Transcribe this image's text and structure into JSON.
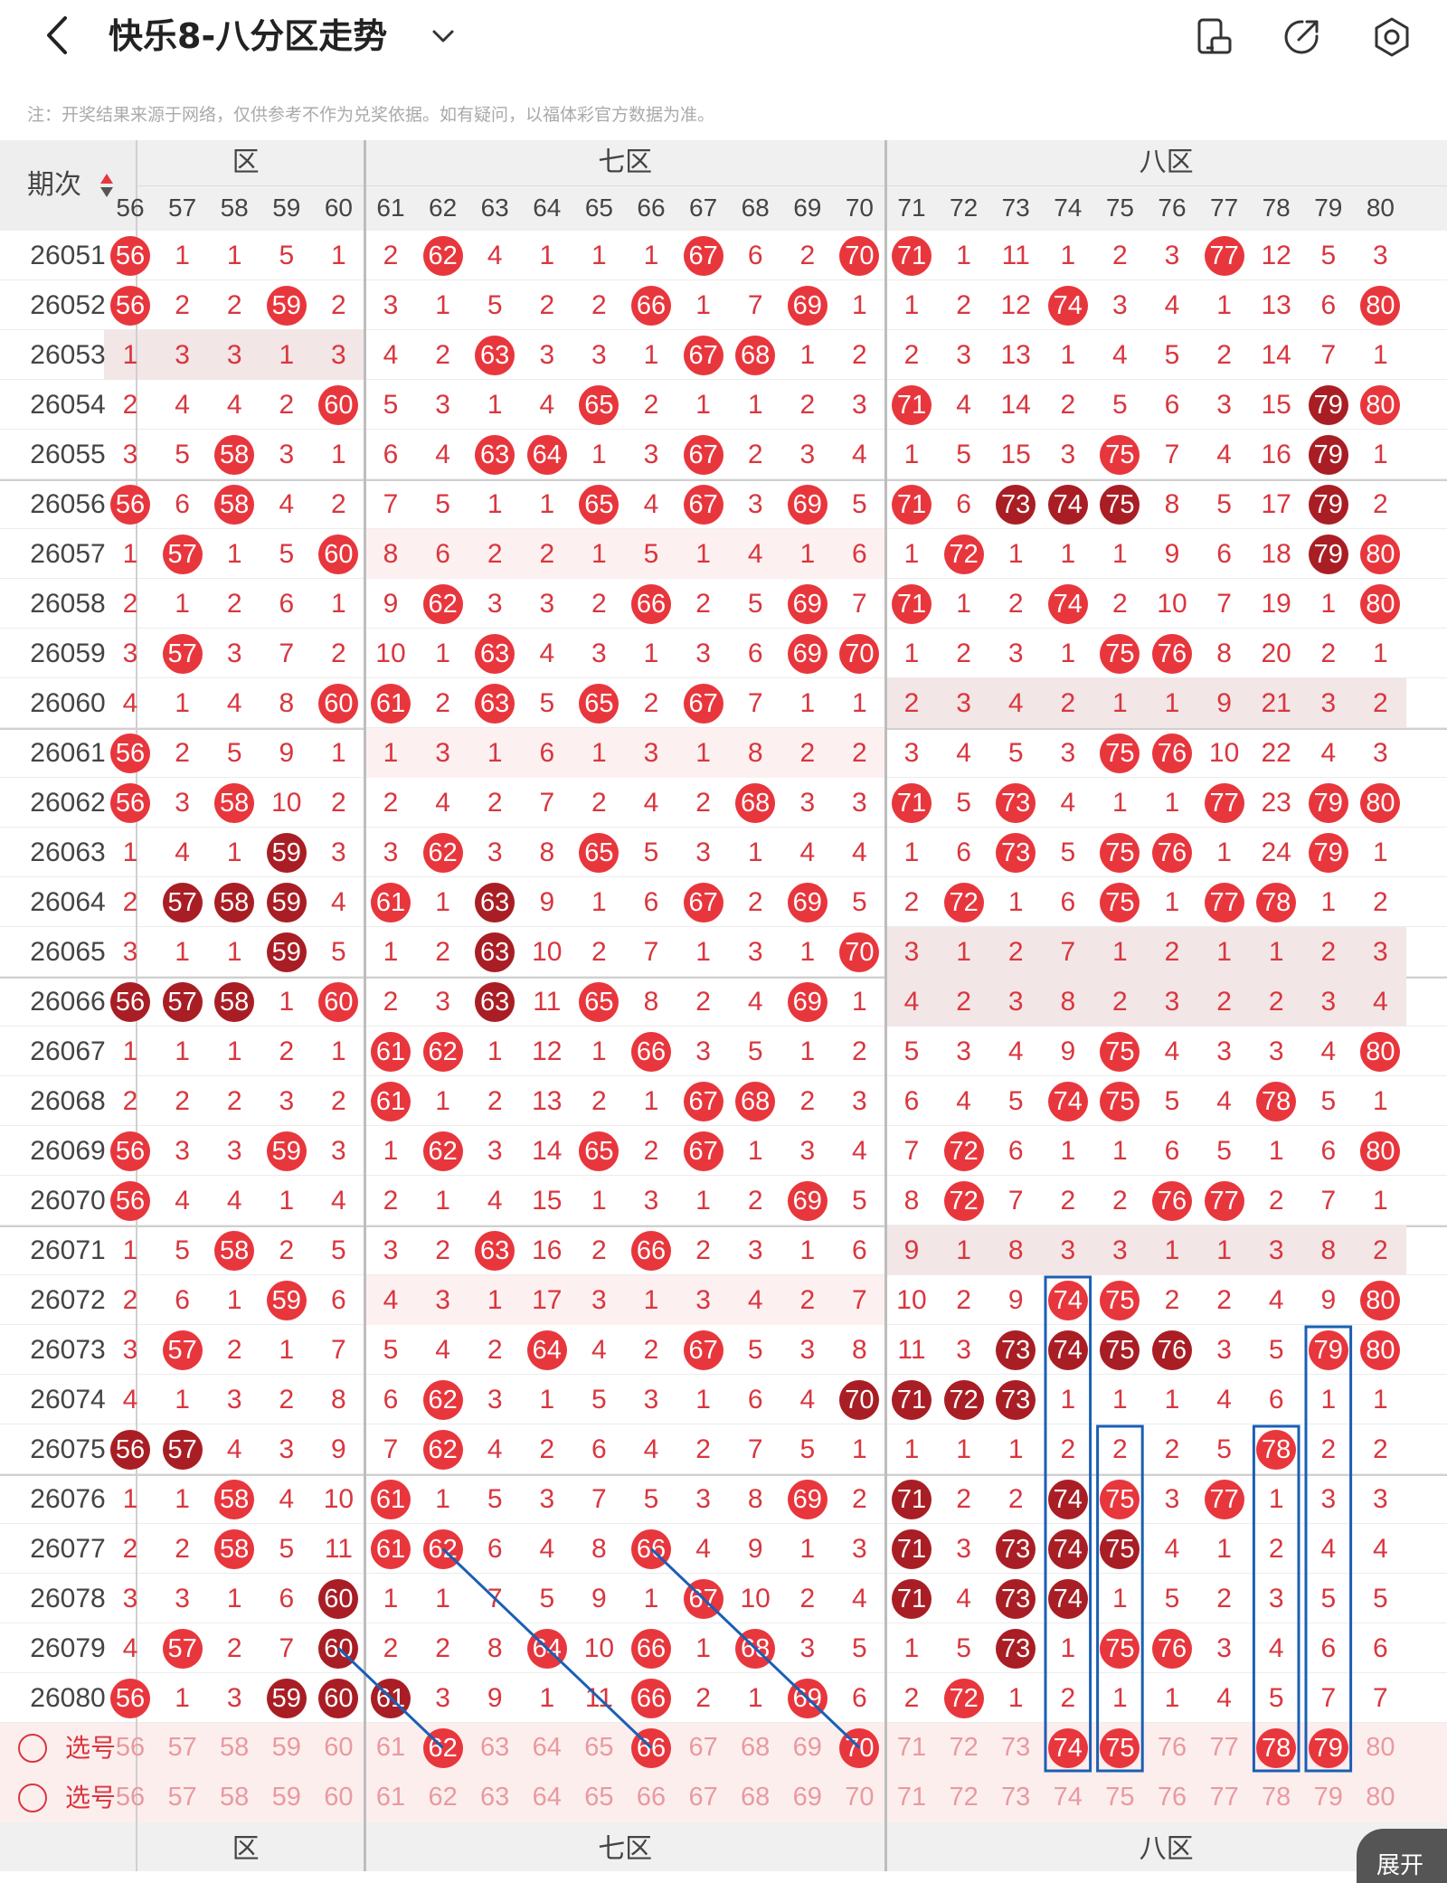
{
  "header": {
    "title": "快乐8-八分区走势"
  },
  "notice": "注：开奖结果来源于网络，仅供参考不作为兑奖依据。如有疑问，以福体彩官方数据为准。",
  "columns_label": "期次",
  "zones": {
    "left_partial": "区",
    "z7": "七区",
    "z8": "八区"
  },
  "column_numbers": [
    56,
    57,
    58,
    59,
    60,
    61,
    62,
    63,
    64,
    65,
    66,
    67,
    68,
    69,
    70,
    71,
    72,
    73,
    74,
    75,
    76,
    77,
    78,
    79,
    80
  ],
  "selector_label": "选号",
  "expand_label": "展开",
  "colors": {
    "hit": "#e8363d",
    "repeat_hit": "#a81e24",
    "miss_text": "#d9363e",
    "overlay_line": "#1a5fb4"
  },
  "rows": [
    {
      "issue": "26051",
      "cells": [
        "H",
        1,
        1,
        5,
        1,
        2,
        "H",
        4,
        1,
        1,
        1,
        "H",
        6,
        2,
        "H",
        "H",
        1,
        11,
        1,
        2,
        3,
        "H",
        12,
        5,
        3
      ]
    },
    {
      "issue": "26052",
      "cells": [
        "H",
        2,
        2,
        "H",
        2,
        3,
        1,
        5,
        2,
        2,
        "H",
        1,
        7,
        "H",
        1,
        1,
        2,
        12,
        "H",
        3,
        4,
        1,
        13,
        6,
        "H"
      ]
    },
    {
      "issue": "26053",
      "cells": [
        1,
        3,
        3,
        1,
        3,
        4,
        2,
        "H",
        3,
        3,
        1,
        "H",
        "H",
        1,
        2,
        2,
        3,
        13,
        1,
        4,
        5,
        2,
        14,
        7,
        1
      ]
    },
    {
      "issue": "26054",
      "cells": [
        2,
        4,
        4,
        2,
        "H",
        5,
        3,
        1,
        4,
        "H",
        2,
        1,
        1,
        2,
        3,
        "H",
        4,
        14,
        2,
        5,
        6,
        3,
        15,
        "D",
        "H"
      ]
    },
    {
      "issue": "26055",
      "cells": [
        3,
        5,
        "H",
        3,
        1,
        6,
        4,
        "H",
        "H",
        1,
        3,
        "H",
        2,
        3,
        4,
        1,
        5,
        15,
        3,
        "H",
        7,
        4,
        16,
        "D",
        1
      ]
    },
    {
      "issue": "26056",
      "cells": [
        "H",
        6,
        "H",
        4,
        2,
        7,
        5,
        1,
        1,
        "H",
        4,
        "H",
        3,
        "H",
        5,
        "H",
        6,
        "D",
        "D",
        "D",
        8,
        5,
        17,
        "D",
        2
      ]
    },
    {
      "issue": "26057",
      "cells": [
        1,
        "H",
        1,
        5,
        "H",
        8,
        6,
        2,
        2,
        1,
        5,
        1,
        4,
        1,
        6,
        1,
        "H",
        1,
        1,
        1,
        9,
        6,
        18,
        "D",
        "H"
      ]
    },
    {
      "issue": "26058",
      "cells": [
        2,
        1,
        2,
        6,
        1,
        9,
        "H",
        3,
        3,
        2,
        "H",
        2,
        5,
        "H",
        7,
        "H",
        1,
        2,
        "H",
        2,
        10,
        7,
        19,
        1,
        "H"
      ]
    },
    {
      "issue": "26059",
      "cells": [
        3,
        "H",
        3,
        7,
        2,
        10,
        1,
        "H",
        4,
        3,
        1,
        3,
        6,
        "H",
        "H",
        1,
        2,
        3,
        1,
        "H",
        "H",
        8,
        20,
        2,
        1
      ]
    },
    {
      "issue": "26060",
      "cells": [
        4,
        1,
        4,
        8,
        "H",
        "H",
        2,
        "H",
        5,
        "H",
        2,
        "H",
        7,
        1,
        1,
        2,
        3,
        4,
        2,
        1,
        1,
        9,
        21,
        3,
        2
      ]
    },
    {
      "issue": "26061",
      "cells": [
        "H",
        2,
        5,
        9,
        1,
        1,
        3,
        1,
        6,
        1,
        3,
        1,
        8,
        2,
        2,
        3,
        4,
        5,
        3,
        "H",
        "H",
        10,
        22,
        4,
        3
      ]
    },
    {
      "issue": "26062",
      "cells": [
        "H",
        3,
        "H",
        10,
        2,
        2,
        4,
        2,
        7,
        2,
        4,
        2,
        "H",
        3,
        3,
        "H",
        5,
        "H",
        4,
        1,
        1,
        "H",
        23,
        "H",
        "H"
      ]
    },
    {
      "issue": "26063",
      "cells": [
        1,
        4,
        1,
        "D",
        3,
        3,
        "H",
        3,
        8,
        "H",
        5,
        3,
        1,
        4,
        4,
        1,
        6,
        "H",
        5,
        "H",
        "H",
        1,
        24,
        "H",
        1
      ]
    },
    {
      "issue": "26064",
      "cells": [
        2,
        "D",
        "D",
        "D",
        4,
        "H",
        1,
        "D",
        9,
        1,
        6,
        "H",
        2,
        "H",
        5,
        2,
        "H",
        1,
        6,
        "H",
        1,
        "H",
        "H",
        1,
        2
      ]
    },
    {
      "issue": "26065",
      "cells": [
        3,
        1,
        1,
        "D",
        5,
        1,
        2,
        "D",
        10,
        2,
        7,
        1,
        3,
        1,
        "H",
        3,
        1,
        2,
        7,
        1,
        2,
        1,
        1,
        2,
        3
      ]
    },
    {
      "issue": "26066",
      "cells": [
        "D",
        "D",
        "D",
        1,
        "H",
        2,
        3,
        "D",
        11,
        "H",
        8,
        2,
        4,
        "H",
        1,
        4,
        2,
        3,
        8,
        2,
        3,
        2,
        2,
        3,
        4
      ]
    },
    {
      "issue": "26067",
      "cells": [
        1,
        1,
        1,
        2,
        1,
        "H",
        "H",
        1,
        12,
        1,
        "H",
        3,
        5,
        1,
        2,
        5,
        3,
        4,
        9,
        "H",
        4,
        3,
        3,
        4,
        "H"
      ]
    },
    {
      "issue": "26068",
      "cells": [
        2,
        2,
        2,
        3,
        2,
        "H",
        1,
        2,
        13,
        2,
        1,
        "H",
        "H",
        2,
        3,
        6,
        4,
        5,
        "H",
        "H",
        5,
        4,
        "H",
        5,
        1
      ]
    },
    {
      "issue": "26069",
      "cells": [
        "H",
        3,
        3,
        "H",
        3,
        1,
        "H",
        3,
        14,
        "H",
        2,
        "H",
        1,
        3,
        4,
        7,
        "H",
        6,
        1,
        1,
        6,
        5,
        1,
        6,
        "H"
      ]
    },
    {
      "issue": "26070",
      "cells": [
        "H",
        4,
        4,
        1,
        4,
        2,
        1,
        4,
        15,
        1,
        3,
        1,
        2,
        "H",
        5,
        8,
        "H",
        7,
        2,
        2,
        "H",
        "H",
        2,
        7,
        1
      ]
    },
    {
      "issue": "26071",
      "cells": [
        1,
        5,
        "H",
        2,
        5,
        3,
        2,
        "H",
        16,
        2,
        "H",
        2,
        3,
        1,
        6,
        9,
        1,
        8,
        3,
        3,
        1,
        1,
        3,
        8,
        2
      ]
    },
    {
      "issue": "26072",
      "cells": [
        2,
        6,
        1,
        "H",
        6,
        4,
        3,
        1,
        17,
        3,
        1,
        3,
        4,
        2,
        7,
        10,
        2,
        9,
        "H",
        "H",
        2,
        2,
        4,
        9,
        "H"
      ]
    },
    {
      "issue": "26073",
      "cells": [
        3,
        "H",
        2,
        1,
        7,
        5,
        4,
        2,
        "H",
        4,
        2,
        "H",
        5,
        3,
        8,
        11,
        3,
        "D",
        "D",
        "D",
        "D",
        3,
        5,
        "H",
        "H"
      ]
    },
    {
      "issue": "26074",
      "cells": [
        4,
        1,
        3,
        2,
        8,
        6,
        "H",
        3,
        1,
        5,
        3,
        1,
        6,
        4,
        "D",
        "D",
        "D",
        "D",
        1,
        1,
        1,
        4,
        6,
        1,
        1
      ]
    },
    {
      "issue": "26075",
      "cells": [
        "D",
        "D",
        4,
        3,
        9,
        7,
        "H",
        4,
        2,
        6,
        4,
        2,
        7,
        5,
        1,
        1,
        1,
        1,
        2,
        2,
        2,
        5,
        "H",
        2,
        2
      ]
    },
    {
      "issue": "26076",
      "cells": [
        1,
        1,
        "H",
        4,
        10,
        "H",
        1,
        5,
        3,
        7,
        5,
        3,
        8,
        "H",
        2,
        "D",
        2,
        2,
        "D",
        "H",
        3,
        "H",
        1,
        3,
        3
      ]
    },
    {
      "issue": "26077",
      "cells": [
        2,
        2,
        "H",
        5,
        11,
        "H",
        "H",
        6,
        4,
        8,
        "H",
        4,
        9,
        1,
        3,
        "D",
        3,
        "D",
        "D",
        "D",
        4,
        1,
        2,
        4,
        4
      ]
    },
    {
      "issue": "26078",
      "cells": [
        3,
        3,
        1,
        6,
        "D",
        1,
        1,
        7,
        5,
        9,
        1,
        "H",
        10,
        2,
        4,
        "D",
        4,
        "D",
        "D",
        1,
        5,
        2,
        3,
        5,
        5
      ]
    },
    {
      "issue": "26079",
      "cells": [
        4,
        "H",
        2,
        7,
        "D",
        2,
        2,
        8,
        "H",
        10,
        "H",
        1,
        "H",
        3,
        5,
        1,
        5,
        "D",
        1,
        "H",
        "H",
        3,
        4,
        6,
        6
      ]
    },
    {
      "issue": "26080",
      "cells": [
        "H",
        1,
        3,
        "D",
        "D",
        "D",
        3,
        9,
        1,
        11,
        "H",
        2,
        1,
        "H",
        6,
        2,
        "H",
        1,
        2,
        1,
        1,
        4,
        5,
        7,
        7
      ]
    }
  ],
  "selected_row1": [
    62,
    66,
    70,
    74,
    75,
    78,
    79
  ]
}
